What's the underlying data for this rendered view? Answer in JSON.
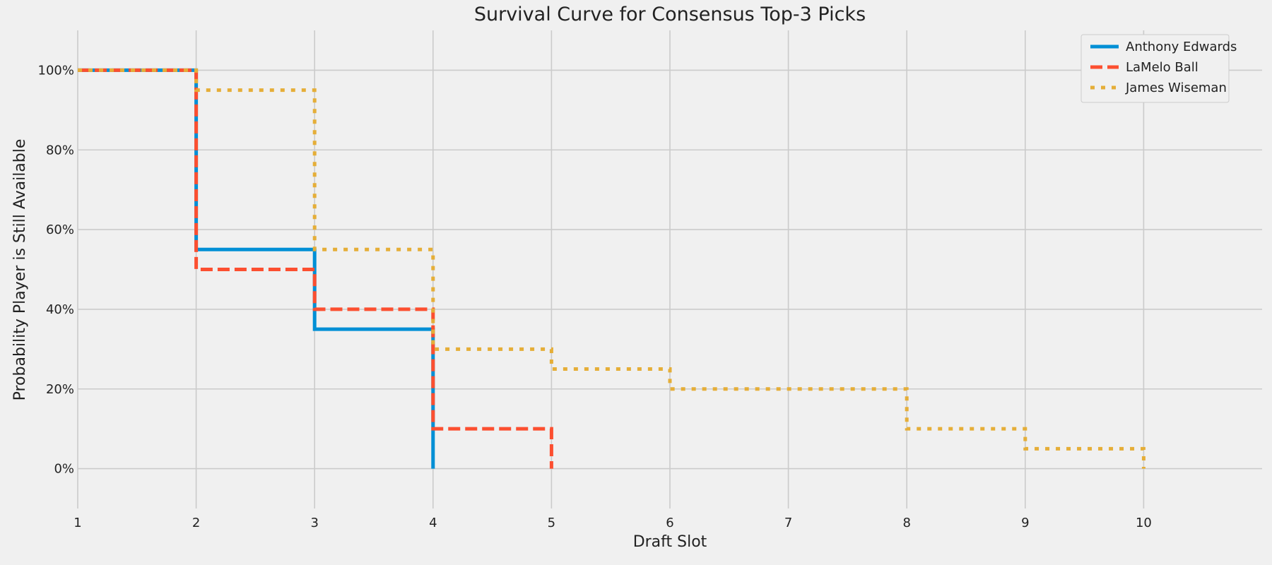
{
  "chart_data": {
    "type": "line",
    "step": "post",
    "title": "Survival Curve for Consensus Top-3 Picks",
    "xlabel": "Draft Slot",
    "ylabel": "Probability Player is Still Available",
    "xlim": [
      1,
      11
    ],
    "ylim": [
      -0.1,
      1.1
    ],
    "x_ticks": [
      1,
      2,
      3,
      4,
      5,
      6,
      7,
      8,
      9,
      10
    ],
    "x_tick_labels": [
      "1",
      "2",
      "3",
      "4",
      "5",
      "6",
      "7",
      "8",
      "9",
      "10"
    ],
    "y_ticks": [
      0,
      0.2,
      0.4,
      0.6,
      0.8,
      1.0
    ],
    "y_tick_labels": [
      "0%",
      "20%",
      "40%",
      "60%",
      "80%",
      "100%"
    ],
    "grid": true,
    "legend_position": "top-right",
    "series": [
      {
        "name": "Anthony Edwards",
        "color": "#008fd5",
        "style": "solid",
        "x": [
          1,
          2,
          3,
          4
        ],
        "y": [
          1.0,
          0.55,
          0.35,
          0.0
        ]
      },
      {
        "name": "LaMelo Ball",
        "color": "#fc4f30",
        "style": "dashed",
        "x": [
          1,
          2,
          3,
          4,
          5
        ],
        "y": [
          1.0,
          0.5,
          0.4,
          0.1,
          0.0
        ]
      },
      {
        "name": "James Wiseman",
        "color": "#e5ae38",
        "style": "dotted",
        "x": [
          1,
          2,
          3,
          4,
          5,
          6,
          8,
          9,
          10
        ],
        "y": [
          1.0,
          0.95,
          0.55,
          0.3,
          0.25,
          0.2,
          0.1,
          0.05,
          0.0
        ]
      }
    ]
  }
}
